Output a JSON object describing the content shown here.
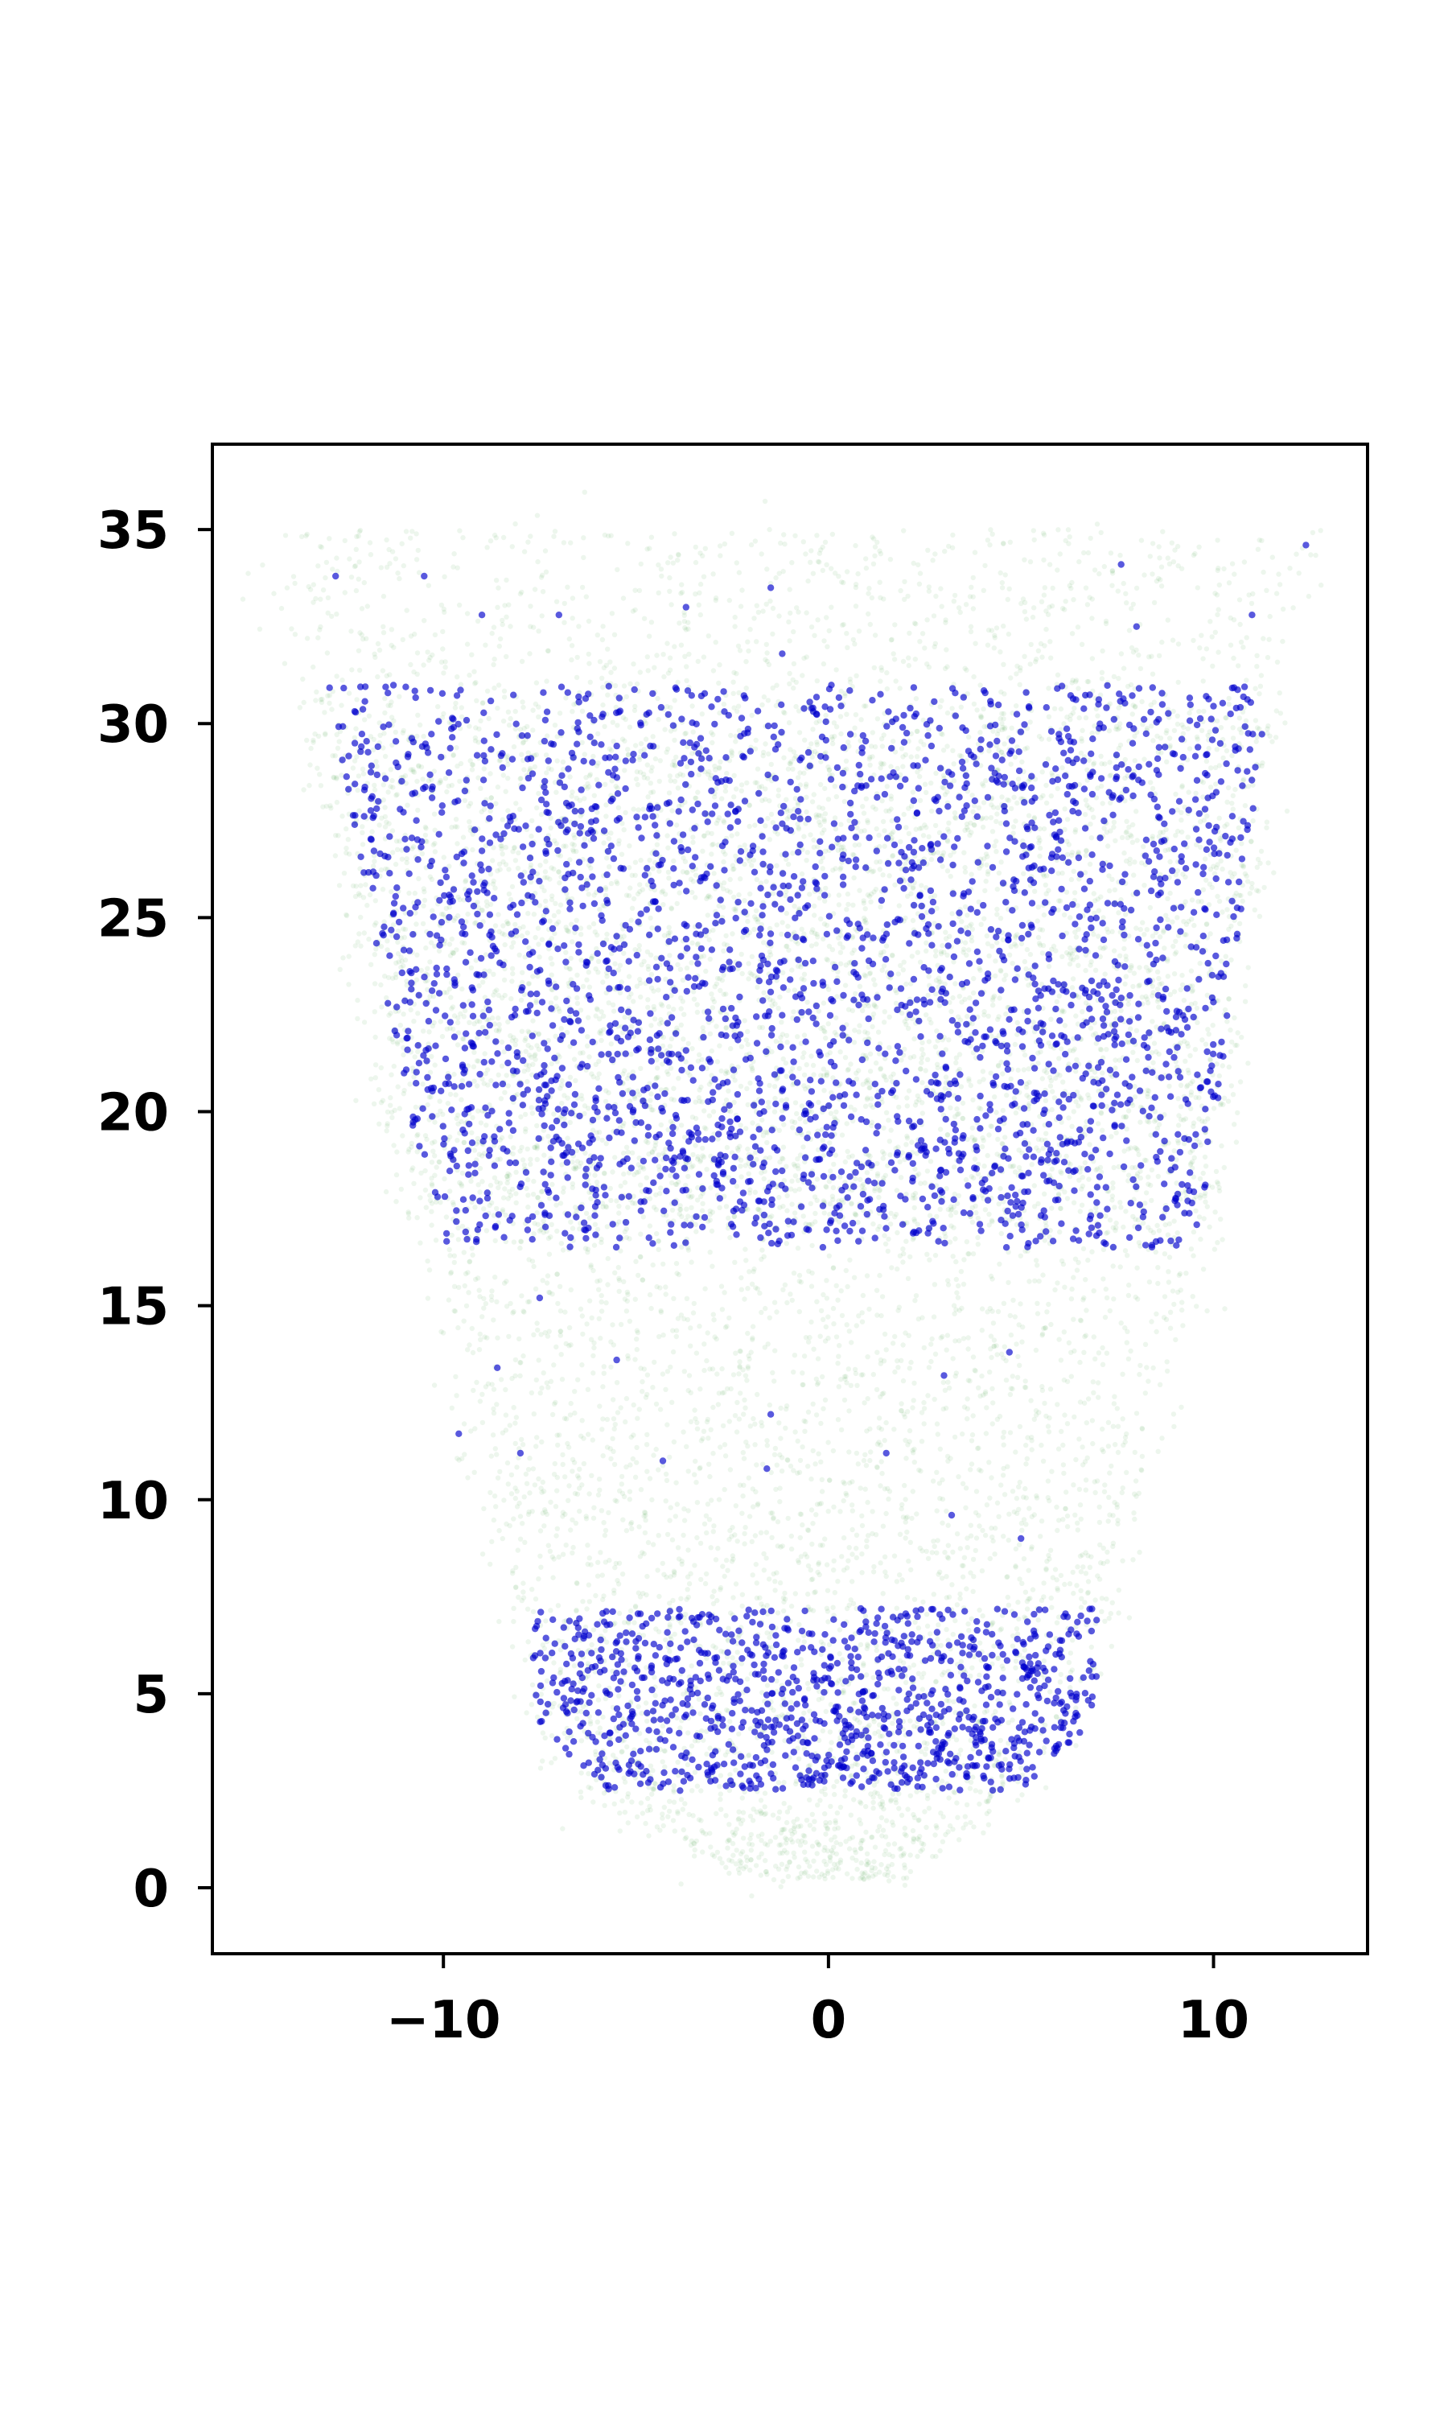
{
  "chart_data": {
    "type": "scatter",
    "title": "",
    "xlabel": "",
    "ylabel": "",
    "xlim": [
      -16,
      14
    ],
    "ylim": [
      -1.7,
      37.2
    ],
    "x_ticks": [
      -10,
      0,
      10
    ],
    "x_tick_labels": [
      "−10",
      "0",
      "10"
    ],
    "y_ticks": [
      0,
      5,
      10,
      15,
      20,
      25,
      30,
      35
    ],
    "y_tick_labels": [
      "0",
      "5",
      "10",
      "15",
      "20",
      "25",
      "30",
      "35"
    ],
    "grid": false,
    "legend": "none",
    "series": [
      {
        "color": "#008000",
        "opacity": 0.07,
        "marker_size": "tiny",
        "envelope": {
          "y": [
            0.2,
            1.5,
            3,
            5,
            7,
            10,
            15,
            20,
            25,
            30,
            33,
            35
          ],
          "x_left": [
            -1.5,
            -5,
            -7,
            -8.2,
            -8.4,
            -9,
            -10.2,
            -11.5,
            -12.5,
            -13.5,
            -14.5,
            -14.8
          ],
          "x_right": [
            1.5,
            4,
            5.6,
            6.8,
            7.4,
            8,
            9.6,
            10.4,
            11,
            11.6,
            12.2,
            13
          ]
        },
        "dense_bands": [
          [
            17,
            30.5
          ]
        ]
      },
      {
        "color": "#0000cc",
        "opacity": 0.65,
        "marker_size": "small",
        "clusters": [
          {
            "y_range": [
              16.5,
              31
            ],
            "x_range": [
              -13,
              11.5
            ],
            "share": "majority"
          },
          {
            "y_range": [
              2.5,
              7.2
            ],
            "x_range": [
              -8,
              7
            ],
            "share": "minority"
          }
        ],
        "outliers": [
          {
            "x": -12.8,
            "y": 33.8
          },
          {
            "x": -10.5,
            "y": 33.8
          },
          {
            "x": -9,
            "y": 32.8
          },
          {
            "x": -7,
            "y": 32.8
          },
          {
            "x": -3.7,
            "y": 33
          },
          {
            "x": -1.5,
            "y": 33.5
          },
          {
            "x": -1.2,
            "y": 31.8
          },
          {
            "x": 7.6,
            "y": 34.1
          },
          {
            "x": 8,
            "y": 32.5
          },
          {
            "x": 12.4,
            "y": 34.6
          },
          {
            "x": 11,
            "y": 32.8
          },
          {
            "x": -7.5,
            "y": 15.2
          },
          {
            "x": -4.3,
            "y": 11
          },
          {
            "x": -8.6,
            "y": 13.4
          },
          {
            "x": -9.6,
            "y": 11.7
          },
          {
            "x": -8,
            "y": 11.2
          },
          {
            "x": -5.5,
            "y": 13.6
          },
          {
            "x": -1.6,
            "y": 10.8
          },
          {
            "x": -1.5,
            "y": 12.2
          },
          {
            "x": 1.5,
            "y": 11.2
          },
          {
            "x": 3,
            "y": 13.2
          },
          {
            "x": 4.7,
            "y": 13.8
          },
          {
            "x": 3.2,
            "y": 9.6
          },
          {
            "x": 5,
            "y": 9
          }
        ]
      }
    ]
  }
}
